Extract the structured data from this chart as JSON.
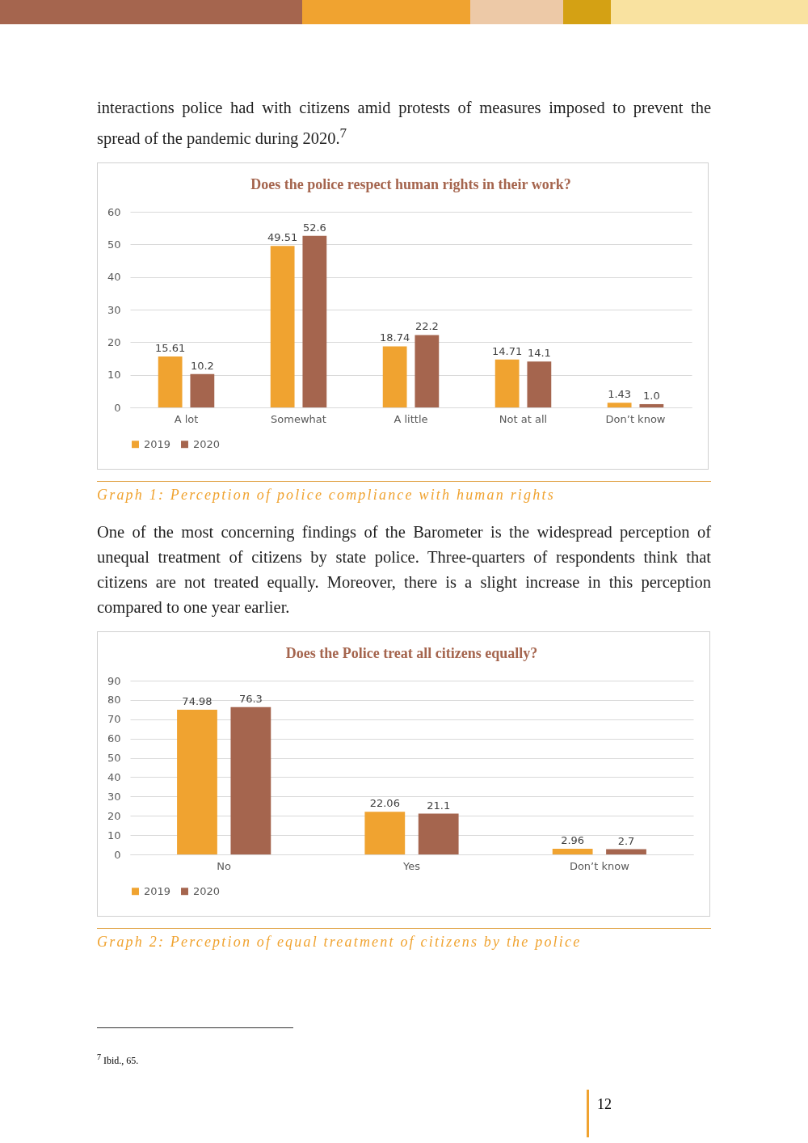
{
  "chart_data": [
    {
      "type": "bar",
      "title": "Does the police respect human rights in their work?",
      "categories": [
        "A lot",
        "Somewhat",
        "A little",
        "Not at all",
        "Don’t know"
      ],
      "series": [
        {
          "name": "2019",
          "color": "#f0a330",
          "values": [
            15.61,
            49.51,
            18.74,
            14.71,
            1.43
          ],
          "value_labels": [
            "15.61",
            "49.51",
            "18.74",
            "14.71",
            "1.43"
          ]
        },
        {
          "name": "2020",
          "color": "#a5654e",
          "values": [
            10.2,
            52.6,
            22.2,
            14.1,
            1.0
          ],
          "value_labels": [
            "10.2",
            "52.6",
            "22.2",
            "14.1",
            "1.0"
          ]
        }
      ],
      "ylim": [
        0,
        60
      ],
      "yticks": [
        0,
        10,
        20,
        30,
        40,
        50,
        60
      ],
      "grid": "y",
      "legend": "bottom",
      "annotations": [
        "interactions police had with citizens amid protests of measures imposed to prevent the spread of the pandemic during 2020.$^{7}$",
        "Graph 1: Perception of police compliance with human rights"
      ]
    },
    {
      "type": "bar",
      "title": "Does the Police treat all citizens equally?",
      "categories": [
        "No",
        "Yes",
        "Don’t know"
      ],
      "series": [
        {
          "name": "2019",
          "color": "#f0a330",
          "values": [
            74.98,
            22.06,
            2.96
          ]
        },
        {
          "name": "2020",
          "color": "#a5654e",
          "values": [
            76.3,
            21.1,
            2.7
          ]
        }
      ],
      "ylim": [
        0,
        90
      ],
      "yticks": [
        0,
        10,
        20,
        30,
        40,
        50,
        60,
        70,
        80,
        90
      ],
      "grid": "y",
      "legend": "bottom",
      "data_labels": true,
      "annotations": [
        "One of the most concerning findings of the Barometer is the widespread perception of unequal treatment of citizens by state police. Three-quarters of respondents think that citizens are not treated equally. Moreover, there is a slight increase in this perception compared to one year earlier.",
        "Graph 2: Perception of equal treatment of citizens by the police",
        "$^{7}$ Ibid., 65.",
        "12"
      ]
    }
  ]
}
